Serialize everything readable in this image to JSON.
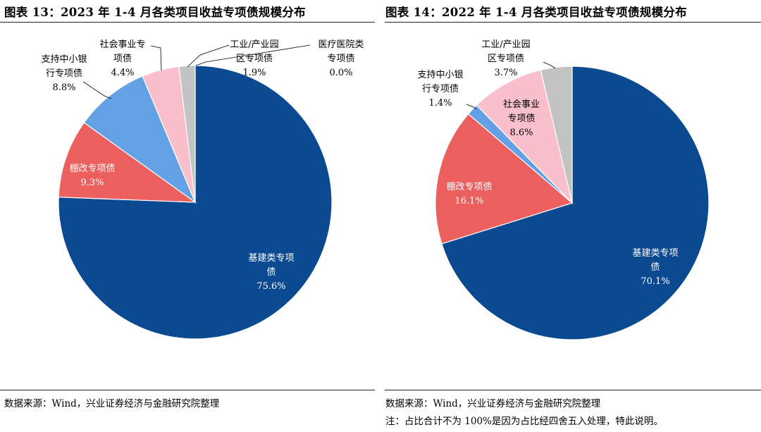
{
  "colors": {
    "infrastructure": "#0b4a91",
    "shantytown": "#ec5f5f",
    "sme_bank": "#64a0e4",
    "social": "#f9bfcb",
    "industrial": "#c3c3c3",
    "medical": "#7fa0b8",
    "outline": "#ffffff"
  },
  "left": {
    "title": "图表 13：2023 年 1-4 月各类项目收益专项债规模分布",
    "source": "数据来源：Wind，兴业证券经济与金融研究院整理",
    "chart_data": {
      "type": "pie",
      "title": "2023 年 1-4 月各类项目收益专项债规模分布",
      "unit": "%",
      "slices": [
        {
          "key": "infrastructure",
          "label": [
            "基建类专项",
            "债"
          ],
          "value": 75.6,
          "display": "75.6%"
        },
        {
          "key": "shantytown",
          "label": [
            "棚改专项债"
          ],
          "value": 9.3,
          "display": "9.3%"
        },
        {
          "key": "sme_bank",
          "label": [
            "支持中小银",
            "行专项债"
          ],
          "value": 8.8,
          "display": "8.8%"
        },
        {
          "key": "social",
          "label": [
            "社会事业专",
            "项债"
          ],
          "value": 4.4,
          "display": "4.4%"
        },
        {
          "key": "industrial",
          "label": [
            "工业/产业园",
            "区专项债"
          ],
          "value": 1.9,
          "display": "1.9%"
        },
        {
          "key": "medical",
          "label": [
            "医疗医院类",
            "专项债"
          ],
          "value": 0.0,
          "display": "0.0%"
        }
      ]
    }
  },
  "right": {
    "title": "图表 14：2022 年 1-4 月各类项目收益专项债规模分布",
    "source": "数据来源：Wind，兴业证券经济与金融研究院整理",
    "note": "注：占比合计不为 100%是因为占比经四舍五入处理，特此说明。",
    "chart_data": {
      "type": "pie",
      "title": "2022 年 1-4 月各类项目收益专项债规模分布",
      "unit": "%",
      "slices": [
        {
          "key": "infrastructure",
          "label": [
            "基建类专项",
            "债"
          ],
          "value": 70.1,
          "display": "70.1%"
        },
        {
          "key": "shantytown",
          "label": [
            "棚改专项债"
          ],
          "value": 16.1,
          "display": "16.1%"
        },
        {
          "key": "sme_bank",
          "label": [
            "支持中小银",
            "行专项债"
          ],
          "value": 1.4,
          "display": "1.4%"
        },
        {
          "key": "social",
          "label": [
            "社会事业",
            "专项债"
          ],
          "value": 8.6,
          "display": "8.6%"
        },
        {
          "key": "industrial",
          "label": [
            "工业/产业园",
            "区专项债"
          ],
          "value": 3.7,
          "display": "3.7%"
        }
      ]
    }
  }
}
